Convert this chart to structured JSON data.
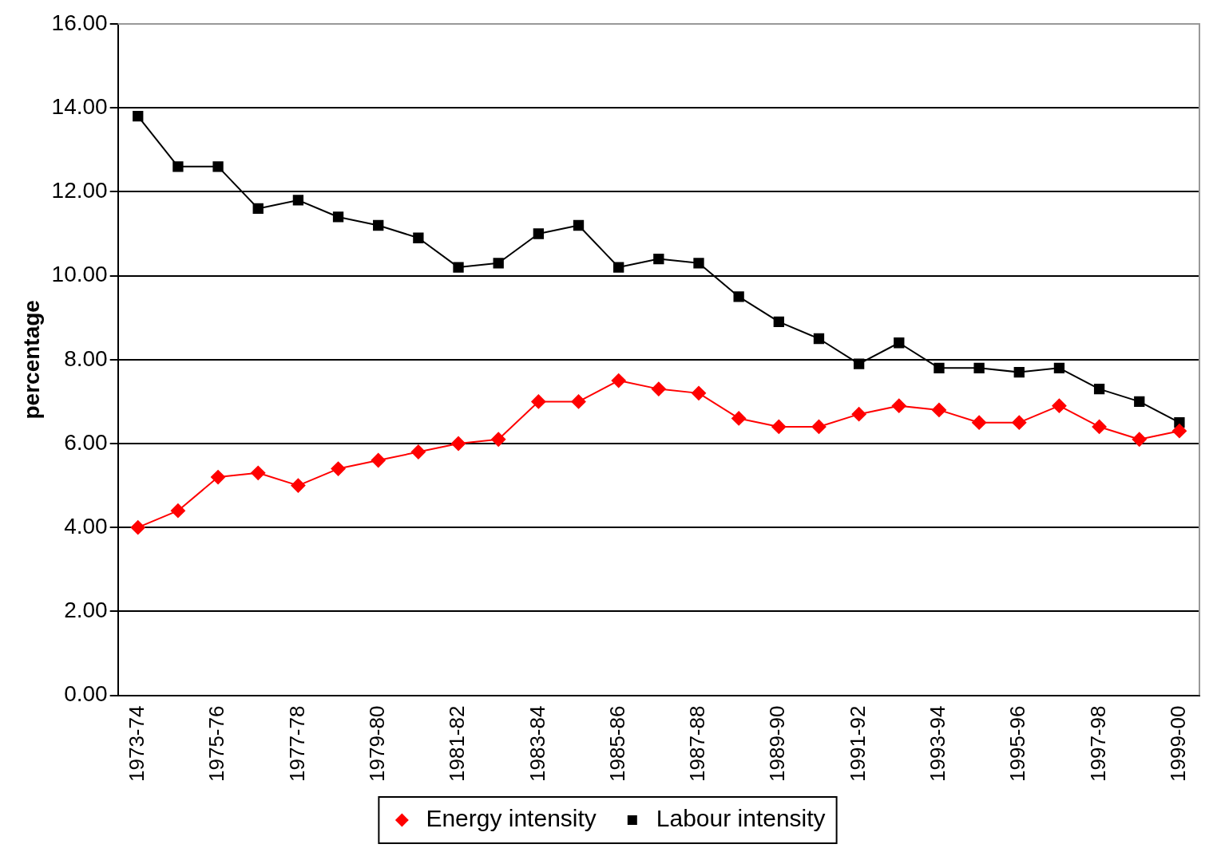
{
  "chart_data": {
    "type": "line",
    "ylabel": "percentage",
    "categories": [
      "1973-74",
      null,
      "1975-76",
      null,
      "1977-78",
      null,
      "1979-80",
      null,
      "1981-82",
      null,
      "1983-84",
      null,
      "1985-86",
      null,
      "1987-88",
      null,
      "1989-90",
      null,
      "1991-92",
      null,
      "1993-94",
      null,
      "1995-96",
      null,
      "1997-98",
      null,
      "1999-00"
    ],
    "series": [
      {
        "name": "Energy intensity",
        "color": "#ff0000",
        "marker": "diamond",
        "values": [
          4.0,
          4.4,
          5.2,
          5.3,
          5.0,
          5.4,
          5.6,
          5.8,
          6.0,
          6.1,
          7.0,
          7.0,
          7.5,
          7.3,
          7.2,
          6.6,
          6.4,
          6.4,
          6.7,
          6.9,
          6.8,
          6.5,
          6.5,
          6.9,
          6.4,
          6.1,
          6.3
        ]
      },
      {
        "name": "Labour intensity",
        "color": "#000000",
        "marker": "square",
        "values": [
          13.8,
          12.6,
          12.6,
          11.6,
          11.8,
          11.4,
          11.2,
          10.9,
          10.2,
          10.3,
          11.0,
          11.2,
          10.2,
          10.4,
          10.3,
          9.5,
          8.9,
          8.5,
          7.9,
          8.4,
          7.8,
          7.8,
          7.7,
          7.8,
          7.3,
          7.0,
          6.5
        ]
      }
    ],
    "ylim": [
      0,
      16
    ],
    "yticks": [
      {
        "value": 0,
        "label": "0.00"
      },
      {
        "value": 2,
        "label": "2.00"
      },
      {
        "value": 4,
        "label": "4.00"
      },
      {
        "value": 6,
        "label": "6.00"
      },
      {
        "value": 8,
        "label": "8.00"
      },
      {
        "value": 10,
        "label": "10.00"
      },
      {
        "value": 12,
        "label": "12.00"
      },
      {
        "value": 14,
        "label": "14.00"
      },
      {
        "value": 16,
        "label": "16.00"
      }
    ],
    "grid": "y",
    "legend": "bottom",
    "line_style": "solid"
  }
}
